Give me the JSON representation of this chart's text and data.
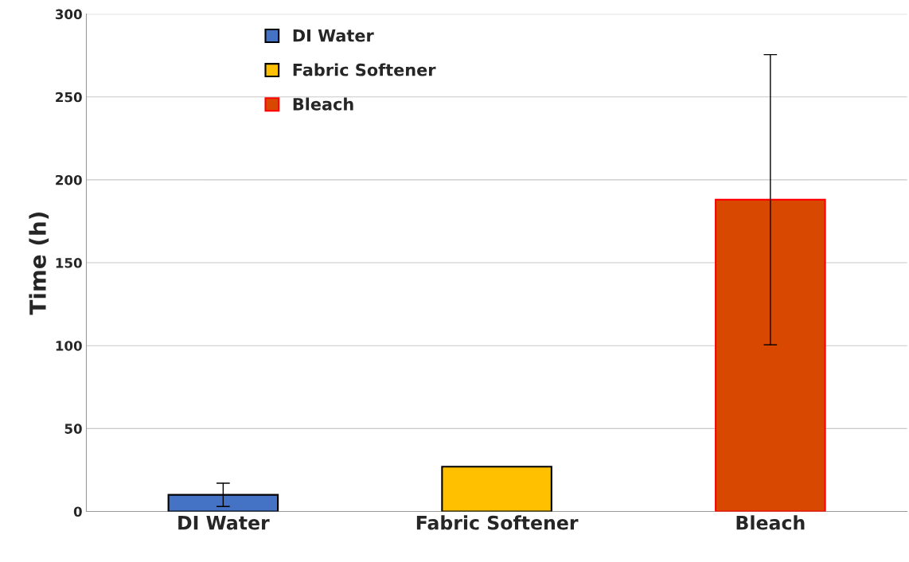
{
  "chart_data": {
    "type": "bar",
    "ylabel": "Time (h)",
    "categories": [
      "DI Water",
      "Fabric Softener",
      "Bleach"
    ],
    "series": [
      {
        "name": "DI Water",
        "color": "#4472c4",
        "values": [
          10,
          null,
          null
        ],
        "errors": [
          7,
          null,
          null
        ]
      },
      {
        "name": "Fabric Softener",
        "color": "#ffc000",
        "values": [
          null,
          27,
          null
        ]
      },
      {
        "name": "Bleach",
        "color": "#d94800",
        "values": [
          null,
          null,
          188
        ],
        "errors": [
          null,
          null,
          87.5
        ]
      }
    ],
    "ylim": [
      0,
      300
    ],
    "yticks": [
      0,
      50,
      100,
      150,
      200,
      250,
      300
    ],
    "grid": "y",
    "legend": "top left"
  }
}
